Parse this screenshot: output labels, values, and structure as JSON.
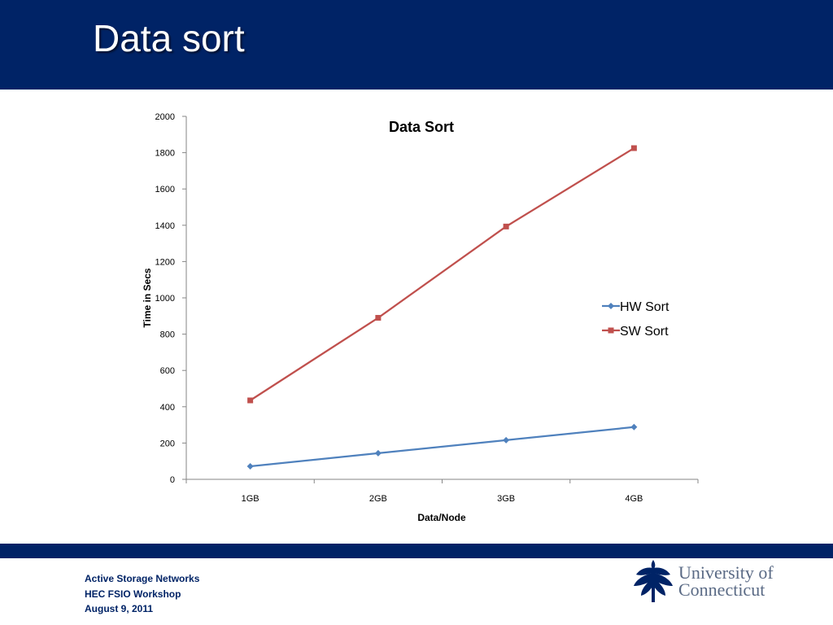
{
  "slide": {
    "title": "Data sort",
    "header_color": "#002366"
  },
  "footer": {
    "line1": "Active Storage Networks",
    "line2": "HEC FSIO Workshop",
    "line3": "August 9, 2011"
  },
  "logo": {
    "line1": "University of",
    "line2": "Connecticut",
    "icon": "oak-leaf-icon"
  },
  "chart_data": {
    "type": "line",
    "title": "Data Sort",
    "xlabel": "Data/Node",
    "ylabel": "Time in Secs",
    "categories": [
      "1GB",
      "2GB",
      "3GB",
      "4GB"
    ],
    "ylim": [
      0,
      2000
    ],
    "yticks": [
      0,
      200,
      400,
      600,
      800,
      1000,
      1200,
      1400,
      1600,
      1800,
      2000
    ],
    "grid": false,
    "legend_position": "right",
    "series": [
      {
        "name": "HW Sort",
        "values": [
          72,
          144,
          216,
          288
        ],
        "color": "#4f81bd",
        "marker": "diamond"
      },
      {
        "name": "SW Sort",
        "values": [
          435,
          890,
          1393,
          1825
        ],
        "color": "#c0504d",
        "marker": "square"
      }
    ]
  }
}
